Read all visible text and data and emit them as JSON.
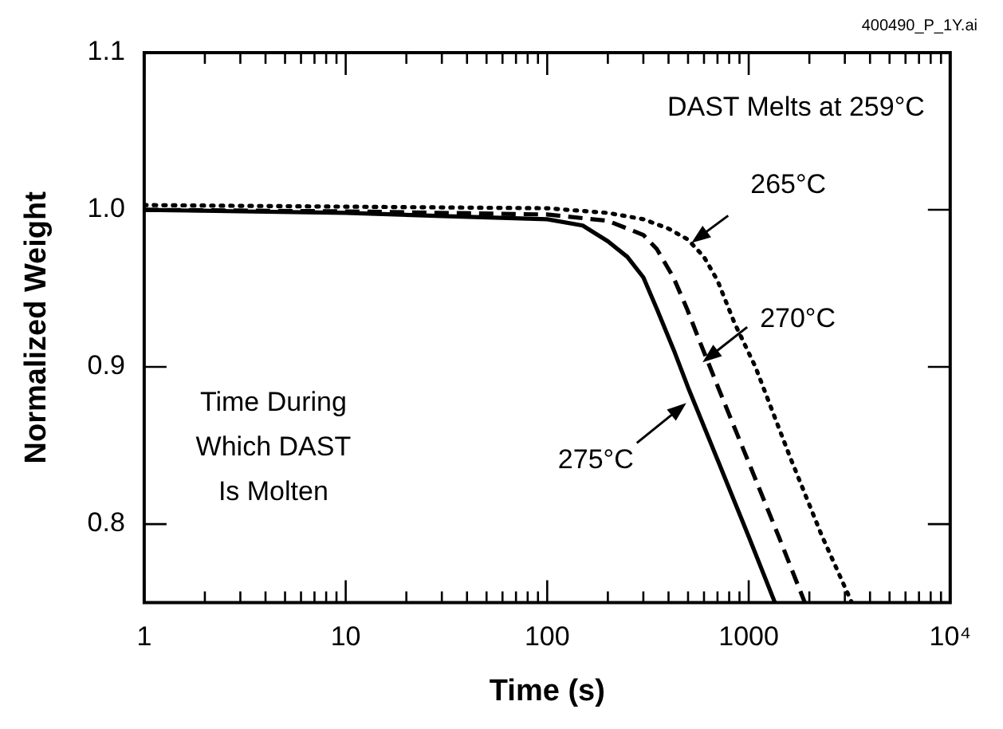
{
  "chart_data": {
    "type": "line",
    "xlabel": "Time (s)",
    "ylabel": "Normalized Weight",
    "log": "x",
    "grid": false,
    "legend": false,
    "marker": "none",
    "xlim": [
      1,
      10000
    ],
    "ylim": [
      0.75,
      1.1
    ],
    "xticks": [
      1,
      {
        "value": 2,
        "label": null
      },
      {
        "value": 3,
        "label": null
      },
      {
        "value": 4,
        "label": null
      },
      {
        "value": 5,
        "label": null
      },
      {
        "value": 6,
        "label": null
      },
      {
        "value": 7,
        "label": null
      },
      {
        "value": 8,
        "label": null
      },
      {
        "value": 9,
        "label": null
      },
      10,
      {
        "value": 20,
        "label": null
      },
      {
        "value": 30,
        "label": null
      },
      {
        "value": 40,
        "label": null
      },
      {
        "value": 50,
        "label": null
      },
      {
        "value": 60,
        "label": null
      },
      {
        "value": 70,
        "label": null
      },
      {
        "value": 80,
        "label": null
      },
      {
        "value": 90,
        "label": null
      },
      100,
      {
        "value": 200,
        "label": null
      },
      {
        "value": 300,
        "label": null
      },
      {
        "value": 400,
        "label": null
      },
      {
        "value": 500,
        "label": null
      },
      {
        "value": 600,
        "label": null
      },
      {
        "value": 700,
        "label": null
      },
      {
        "value": 800,
        "label": null
      },
      {
        "value": 900,
        "label": null
      },
      1000,
      {
        "value": 2000,
        "label": null
      },
      {
        "value": 3000,
        "label": null
      },
      {
        "value": 4000,
        "label": null
      },
      {
        "value": 5000,
        "label": null
      },
      {
        "value": 6000,
        "label": null
      },
      {
        "value": 7000,
        "label": null
      },
      {
        "value": 8000,
        "label": null
      },
      {
        "value": 9000,
        "label": null
      },
      {
        "value": 10000,
        "label": "10⁴"
      }
    ],
    "yticks": [
      0.8,
      0.9,
      {
        "value": 1,
        "label": "1.0"
      },
      1.1
    ],
    "series": [
      {
        "color": "#000000",
        "line_style": "solid",
        "x": [
          1,
          3,
          10,
          30,
          100,
          150,
          200,
          250,
          300,
          350,
          430,
          500,
          700,
          1000,
          1350
        ],
        "values": [
          1.0,
          0.999,
          0.998,
          0.996,
          0.994,
          0.99,
          0.98,
          0.97,
          0.957,
          0.937,
          0.909,
          0.887,
          0.841,
          0.792,
          0.75
        ]
      },
      {
        "color": "#000000",
        "line_style": "dashed",
        "x": [
          1,
          10,
          100,
          200,
          300,
          350,
          423,
          494,
          564,
          705,
          987,
          1410,
          1900
        ],
        "values": [
          1.0,
          0.999,
          0.997,
          0.993,
          0.984,
          0.975,
          0.957,
          0.937,
          0.918,
          0.887,
          0.841,
          0.792,
          0.75
        ]
      },
      {
        "color": "#000000",
        "line_style": "dotted",
        "x": [
          1,
          10,
          100,
          200,
          300,
          400,
          500,
          600,
          700,
          850,
          1080,
          1600,
          2300,
          3250
        ],
        "values": [
          1.003,
          1.002,
          1.001,
          0.998,
          0.994,
          0.988,
          0.981,
          0.97,
          0.955,
          0.928,
          0.9,
          0.843,
          0.793,
          0.75
        ]
      }
    ],
    "annotations": [
      {
        "text": "265°C",
        "x": 520,
        "y": 0.979
      },
      {
        "text": "270°C",
        "x": 590,
        "y": 0.903
      },
      {
        "text": "275°C",
        "x": 490,
        "y": 0.877
      },
      "DAST Melts at 259°C",
      "Time During\nWhich DAST\nIs Molten",
      "400490_P_1Y.ai"
    ]
  }
}
